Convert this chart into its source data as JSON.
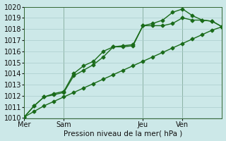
{
  "title": "Pression niveau de la mer( hPa )",
  "bg_color": "#cce8e8",
  "grid_color": "#aacccc",
  "line_color": "#1a6b1a",
  "ylim": [
    1010,
    1020
  ],
  "yticks": [
    1010,
    1011,
    1012,
    1013,
    1014,
    1015,
    1016,
    1017,
    1018,
    1019,
    1020
  ],
  "xtick_labels": [
    "Mer",
    "Sam",
    "Jeu",
    "Ven"
  ],
  "xtick_positions": [
    0,
    16,
    48,
    64
  ],
  "vline_positions": [
    0,
    16,
    48,
    64
  ],
  "xlim": [
    0,
    80
  ],
  "series1_x": [
    0,
    4,
    8,
    12,
    16,
    20,
    24,
    28,
    32,
    36,
    40,
    44,
    48,
    52,
    56,
    60,
    64,
    68,
    72,
    76,
    80
  ],
  "series1_y": [
    1010.1,
    1010.6,
    1011.1,
    1011.5,
    1011.9,
    1012.3,
    1012.7,
    1013.1,
    1013.5,
    1013.9,
    1014.3,
    1014.7,
    1015.1,
    1015.5,
    1015.9,
    1016.3,
    1016.7,
    1017.1,
    1017.5,
    1017.9,
    1018.2
  ],
  "series2_x": [
    0,
    4,
    8,
    12,
    16,
    20,
    24,
    28,
    32,
    36,
    40,
    44,
    48,
    52,
    56,
    60,
    64,
    68,
    72,
    76,
    80
  ],
  "series2_y": [
    1010.1,
    1011.1,
    1011.9,
    1012.1,
    1012.3,
    1013.8,
    1014.3,
    1014.8,
    1015.5,
    1016.4,
    1016.4,
    1016.5,
    1018.3,
    1018.3,
    1018.3,
    1018.5,
    1019.0,
    1018.8,
    1018.8,
    1018.7,
    1018.2
  ],
  "series3_x": [
    0,
    4,
    8,
    12,
    16,
    20,
    24,
    28,
    32,
    36,
    40,
    44,
    48,
    52,
    56,
    60,
    64,
    68,
    72,
    76,
    80
  ],
  "series3_y": [
    1010.1,
    1011.1,
    1011.9,
    1012.2,
    1012.4,
    1014.0,
    1014.7,
    1015.1,
    1016.0,
    1016.4,
    1016.5,
    1016.6,
    1018.3,
    1018.5,
    1018.8,
    1019.5,
    1019.8,
    1019.2,
    1018.8,
    1018.7,
    1018.2
  ],
  "marker": "D",
  "markersize": 2.5,
  "linewidth": 1.0
}
